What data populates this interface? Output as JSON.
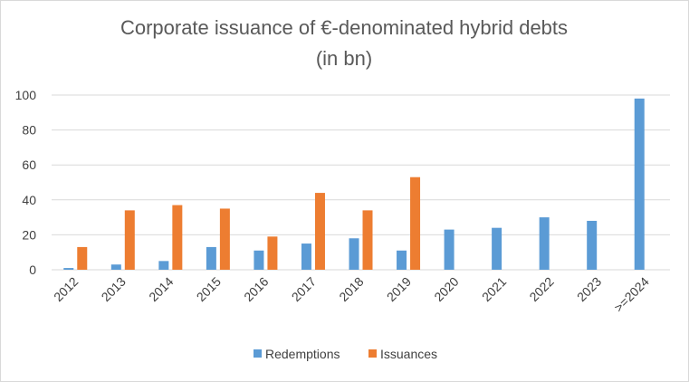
{
  "chart_data": {
    "type": "bar",
    "title_line1": "Corporate issuance of €-denominated hybrid debts",
    "title_line2": "(in bn)",
    "categories": [
      "2012",
      "2013",
      "2014",
      "2015",
      "2016",
      "2017",
      "2018",
      "2019",
      "2020",
      "2021",
      "2022",
      "2023",
      ">=2024"
    ],
    "series": [
      {
        "name": "Redemptions",
        "color": "#5b9bd5",
        "values": [
          1,
          3,
          5,
          13,
          11,
          15,
          18,
          11,
          23,
          24,
          30,
          28,
          98
        ]
      },
      {
        "name": "Issuances",
        "color": "#ed7d31",
        "values": [
          13,
          34,
          37,
          35,
          19,
          44,
          34,
          53,
          0,
          0,
          0,
          0,
          0
        ]
      }
    ],
    "ylim": [
      0,
      100
    ],
    "yticks": [
      0,
      20,
      40,
      60,
      80,
      100
    ],
    "grid": true,
    "legend": "bottom"
  }
}
